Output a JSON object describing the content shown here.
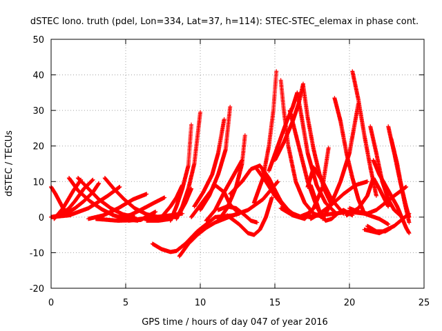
{
  "chart_data": {
    "type": "scatter",
    "title": "dSTEC Iono. truth (pdel, Lon=334, Lat=37, h=114): STEC-STEC_elemax in phase cont.",
    "xlabel": "GPS time / hours of day 047 of year 2016",
    "ylabel": "dSTEC  / TECUs",
    "xlim": [
      0,
      25
    ],
    "ylim": [
      -20,
      50
    ],
    "xticks": [
      0,
      5,
      10,
      15,
      20,
      25
    ],
    "yticks": [
      -20,
      -10,
      0,
      10,
      20,
      30,
      40,
      50
    ],
    "grid": true,
    "marker": "+",
    "color": "#ff0000",
    "series": [
      {
        "x": [
          0.0,
          0.3,
          0.8,
          1.3
        ],
        "y": [
          8.5,
          6.5,
          2.5,
          0.5
        ]
      },
      {
        "x": [
          0.0,
          0.6,
          1.2,
          1.6,
          2.2,
          2.8
        ],
        "y": [
          0,
          0.5,
          2.5,
          4.5,
          8.0,
          10.5
        ]
      },
      {
        "x": [
          0.0,
          0.8,
          1.6,
          2.2,
          2.8,
          3.2
        ],
        "y": [
          0,
          0.5,
          2.5,
          4.5,
          7.0,
          9.5
        ]
      },
      {
        "x": [
          0.0,
          1.2,
          2.5,
          3.8,
          4.6
        ],
        "y": [
          0,
          0.5,
          2.5,
          6.0,
          8.5
        ]
      },
      {
        "x": [
          1.2,
          1.8,
          2.6,
          3.4,
          4.2,
          5.0,
          5.8
        ],
        "y": [
          11.0,
          7.5,
          4.5,
          2.2,
          0.5,
          -0.5,
          -1.0
        ]
      },
      {
        "x": [
          0.2,
          0.8,
          1.5,
          2.0
        ],
        "y": [
          -0.5,
          2.5,
          7.5,
          10.5
        ]
      },
      {
        "x": [
          1.8,
          2.5,
          3.2,
          4.0,
          4.8,
          5.6
        ],
        "y": [
          11.0,
          8.0,
          5.0,
          2.5,
          0.8,
          0.0
        ]
      },
      {
        "x": [
          2.5,
          3.5,
          4.5,
          5.5,
          6.4
        ],
        "y": [
          -0.5,
          0.5,
          2.5,
          5.0,
          6.5
        ]
      },
      {
        "x": [
          3.6,
          4.2,
          4.9,
          5.6,
          6.4,
          7.2
        ],
        "y": [
          11.0,
          8.0,
          5.0,
          2.5,
          0.8,
          0.0
        ]
      },
      {
        "x": [
          4.5,
          5.3,
          6.0,
          6.8,
          7.6
        ],
        "y": [
          0.0,
          0.6,
          2.0,
          3.8,
          5.5
        ]
      },
      {
        "x": [
          3.0,
          4.5,
          6.0,
          7.0
        ],
        "y": [
          -0.5,
          -1.0,
          -0.8,
          1.5
        ]
      },
      {
        "x": [
          5.2,
          6.0,
          7.0,
          8.0,
          8.8
        ],
        "y": [
          -1.0,
          -0.5,
          0.0,
          0.5,
          1.0
        ]
      },
      {
        "x": [
          6.4,
          7.2,
          8.0,
          8.6,
          9.0,
          9.4
        ],
        "y": [
          -1.0,
          -1.0,
          -0.5,
          1.0,
          4.0,
          8.0
        ]
      },
      {
        "x": [
          7.2,
          7.6,
          8.0,
          8.4,
          8.8
        ],
        "y": [
          -1.0,
          1.0,
          3.0,
          5.5,
          9.0
        ]
      },
      {
        "x": [
          8.0,
          8.4,
          8.8,
          9.2,
          9.4
        ],
        "y": [
          -1.0,
          3.0,
          8.0,
          14.5,
          26.0
        ]
      },
      {
        "x": [
          8.4,
          8.8,
          9.2,
          9.6,
          10.0
        ],
        "y": [
          -0.5,
          3.0,
          8.0,
          15.0,
          29.5
        ]
      },
      {
        "x": [
          6.8,
          7.4,
          8.0,
          8.4,
          9.0,
          9.8,
          11.0
        ],
        "y": [
          -7.5,
          -9.0,
          -9.8,
          -9.5,
          -7.5,
          -4.0,
          0.0
        ]
      },
      {
        "x": [
          8.6,
          9.2,
          9.8,
          10.4,
          11.0,
          11.6,
          12.2,
          12.6
        ],
        "y": [
          -11.0,
          -7.5,
          -5.0,
          -3.0,
          -1.5,
          -0.5,
          0.5,
          1.0
        ]
      },
      {
        "x": [
          9.6,
          10.2,
          10.8,
          11.2,
          11.6
        ],
        "y": [
          3.0,
          7.0,
          12.0,
          18.0,
          27.5
        ]
      },
      {
        "x": [
          10.0,
          10.6,
          11.2,
          11.7,
          12.0
        ],
        "y": [
          2.0,
          6.0,
          12.0,
          19.0,
          31.0
        ]
      },
      {
        "x": [
          9.4,
          10.2,
          11.0,
          11.6,
          12.0,
          12.6
        ],
        "y": [
          0.0,
          4.5,
          9.0,
          7.0,
          3.5,
          1.0
        ]
      },
      {
        "x": [
          10.4,
          11.0,
          11.6,
          12.0,
          12.4,
          12.8
        ],
        "y": [
          -1.0,
          2.0,
          7.0,
          10.0,
          13.0,
          16.0
        ]
      },
      {
        "x": [
          11.2,
          11.8,
          12.4,
          12.8,
          13.0
        ],
        "y": [
          -1.0,
          2.5,
          8.5,
          15.0,
          23.0
        ]
      },
      {
        "x": [
          11.2,
          11.8,
          12.4,
          13.0,
          13.4,
          13.8
        ],
        "y": [
          2.0,
          3.0,
          2.5,
          0.5,
          -1.0,
          -1.5
        ]
      },
      {
        "x": [
          11.8,
          12.6,
          13.2,
          13.6,
          14.0,
          14.4,
          14.8
        ],
        "y": [
          0.5,
          -2.0,
          -4.5,
          -5.0,
          -3.5,
          0.0,
          5.5
        ]
      },
      {
        "x": [
          12.0,
          12.8,
          13.4,
          14.0,
          14.6,
          15.2
        ],
        "y": [
          6.5,
          10.0,
          13.5,
          14.5,
          11.0,
          6.0
        ]
      },
      {
        "x": [
          11.0,
          12.2,
          13.2,
          14.2,
          15.2
        ],
        "y": [
          0.0,
          0.5,
          2.0,
          5.0,
          10.0
        ]
      },
      {
        "x": [
          13.6,
          14.2,
          14.6,
          14.9,
          15.1
        ],
        "y": [
          4.0,
          11.0,
          20.0,
          30.0,
          41.0
        ]
      },
      {
        "x": [
          13.8,
          14.4,
          15.0,
          15.6,
          16.2,
          16.8
        ],
        "y": [
          13.5,
          10.0,
          6.0,
          3.0,
          1.0,
          0.0
        ]
      },
      {
        "x": [
          14.2,
          14.8,
          15.4,
          16.0,
          16.6,
          17.2,
          17.6
        ],
        "y": [
          13.0,
          9.0,
          4.5,
          1.5,
          0.0,
          1.0,
          2.5
        ]
      },
      {
        "x": [
          15.4,
          15.6,
          15.9,
          16.4,
          17.0,
          17.6,
          18.2
        ],
        "y": [
          38.5,
          30.0,
          20.0,
          10.0,
          4.0,
          1.0,
          0.0
        ]
      },
      {
        "x": [
          14.6,
          15.2,
          15.8,
          16.2,
          16.5
        ],
        "y": [
          13.0,
          20.0,
          27.0,
          31.0,
          35.0
        ]
      },
      {
        "x": [
          15.0,
          15.6,
          16.2,
          16.6,
          16.9
        ],
        "y": [
          16.0,
          21.0,
          27.0,
          32.0,
          37.5
        ]
      },
      {
        "x": [
          16.5,
          16.8,
          17.2,
          17.8,
          18.4,
          19.0
        ],
        "y": [
          35.0,
          28.0,
          18.0,
          9.0,
          4.0,
          1.5
        ]
      },
      {
        "x": [
          16.9,
          17.2,
          17.6,
          18.0,
          18.4,
          18.8
        ],
        "y": [
          37.0,
          28.0,
          19.0,
          12.0,
          7.0,
          3.5
        ]
      },
      {
        "x": [
          16.0,
          16.6,
          17.2,
          17.8,
          18.2
        ],
        "y": [
          30.0,
          20.0,
          10.0,
          3.0,
          0.0
        ]
      },
      {
        "x": [
          15.4,
          16.2,
          17.0,
          17.6,
          18.2,
          18.6
        ],
        "y": [
          2.5,
          0.5,
          -0.5,
          2.5,
          8.5,
          19.5
        ]
      },
      {
        "x": [
          17.4,
          18.0,
          18.4,
          18.8,
          19.2,
          19.6,
          20.2
        ],
        "y": [
          9.0,
          1.5,
          -1.0,
          -0.5,
          1.0,
          2.0,
          0.5
        ]
      },
      {
        "x": [
          17.2,
          17.6,
          18.2,
          18.8,
          19.6
        ],
        "y": [
          8.5,
          14.0,
          10.0,
          5.0,
          1.0
        ]
      },
      {
        "x": [
          17.4,
          18.0,
          18.8,
          19.6,
          20.4,
          21.2
        ],
        "y": [
          -0.5,
          1.0,
          3.5,
          6.5,
          9.0,
          10.0
        ]
      },
      {
        "x": [
          17.0,
          18.0,
          19.0,
          20.0,
          21.0,
          22.0,
          22.6
        ],
        "y": [
          0.0,
          0.5,
          1.0,
          1.5,
          1.0,
          -0.5,
          -2.0
        ]
      },
      {
        "x": [
          18.2,
          18.8,
          19.4,
          20.0,
          20.6
        ],
        "y": [
          -0.5,
          4.0,
          10.0,
          18.0,
          32.0
        ]
      },
      {
        "x": [
          19.0,
          19.4,
          19.8,
          20.2,
          20.6,
          21.0
        ],
        "y": [
          33.5,
          27.0,
          18.0,
          11.0,
          5.0,
          1.0
        ]
      },
      {
        "x": [
          20.2,
          20.6,
          21.0,
          21.4,
          21.8
        ],
        "y": [
          41.0,
          33.0,
          23.0,
          14.0,
          6.0
        ]
      },
      {
        "x": [
          20.0,
          20.6,
          21.2,
          21.8,
          22.4,
          23.0,
          23.8
        ],
        "y": [
          2.5,
          1.5,
          1.0,
          2.0,
          4.0,
          6.0,
          8.5
        ]
      },
      {
        "x": [
          19.8,
          20.6,
          21.2,
          21.6,
          22.0,
          22.6
        ],
        "y": [
          0.5,
          2.5,
          6.0,
          11.0,
          8.0,
          3.0
        ]
      },
      {
        "x": [
          21.4,
          21.8,
          22.2,
          22.6,
          23.0,
          23.4
        ],
        "y": [
          25.5,
          18.0,
          10.0,
          5.0,
          2.0,
          0.5
        ]
      },
      {
        "x": [
          21.6,
          22.0,
          22.4,
          22.8,
          23.2,
          23.8,
          24.0
        ],
        "y": [
          16.0,
          12.0,
          9.0,
          6.0,
          3.0,
          -3.0,
          -4.5
        ]
      },
      {
        "x": [
          22.6,
          23.0,
          23.4,
          23.8,
          24.0
        ],
        "y": [
          25.5,
          18.0,
          10.0,
          3.0,
          0.0
        ]
      },
      {
        "x": [
          22.8,
          23.2,
          23.6,
          24.0
        ],
        "y": [
          22.0,
          15.0,
          6.0,
          -1.5
        ]
      },
      {
        "x": [
          21.2,
          21.8,
          22.4,
          22.8
        ],
        "y": [
          -2.5,
          -4.0,
          -4.0,
          -3.0
        ]
      },
      {
        "x": [
          21.0,
          22.0,
          23.0,
          24.0
        ],
        "y": [
          -3.5,
          -4.5,
          -2.5,
          1.0
        ]
      }
    ]
  }
}
